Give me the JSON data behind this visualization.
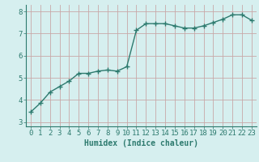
{
  "x": [
    0,
    1,
    2,
    3,
    4,
    5,
    6,
    7,
    8,
    9,
    10,
    11,
    12,
    13,
    14,
    15,
    16,
    17,
    18,
    19,
    20,
    21,
    22,
    23
  ],
  "y": [
    3.45,
    3.85,
    4.35,
    4.6,
    4.85,
    5.2,
    5.2,
    5.3,
    5.35,
    5.3,
    5.5,
    7.15,
    7.45,
    7.45,
    7.45,
    7.35,
    7.25,
    7.25,
    7.35,
    7.5,
    7.65,
    7.85,
    7.85,
    7.6
  ],
  "line_color": "#2d7a6e",
  "marker": "+",
  "markersize": 4,
  "linewidth": 1.0,
  "bg_color": "#d6efef",
  "grid_color": "#c8a8a8",
  "xlabel": "Humidex (Indice chaleur)",
  "xlabel_fontsize": 7,
  "tick_fontsize": 6.5,
  "ylim": [
    2.8,
    8.3
  ],
  "xlim": [
    -0.5,
    23.5
  ],
  "yticks": [
    3,
    4,
    5,
    6,
    7,
    8
  ],
  "xticks": [
    0,
    1,
    2,
    3,
    4,
    5,
    6,
    7,
    8,
    9,
    10,
    11,
    12,
    13,
    14,
    15,
    16,
    17,
    18,
    19,
    20,
    21,
    22,
    23
  ]
}
